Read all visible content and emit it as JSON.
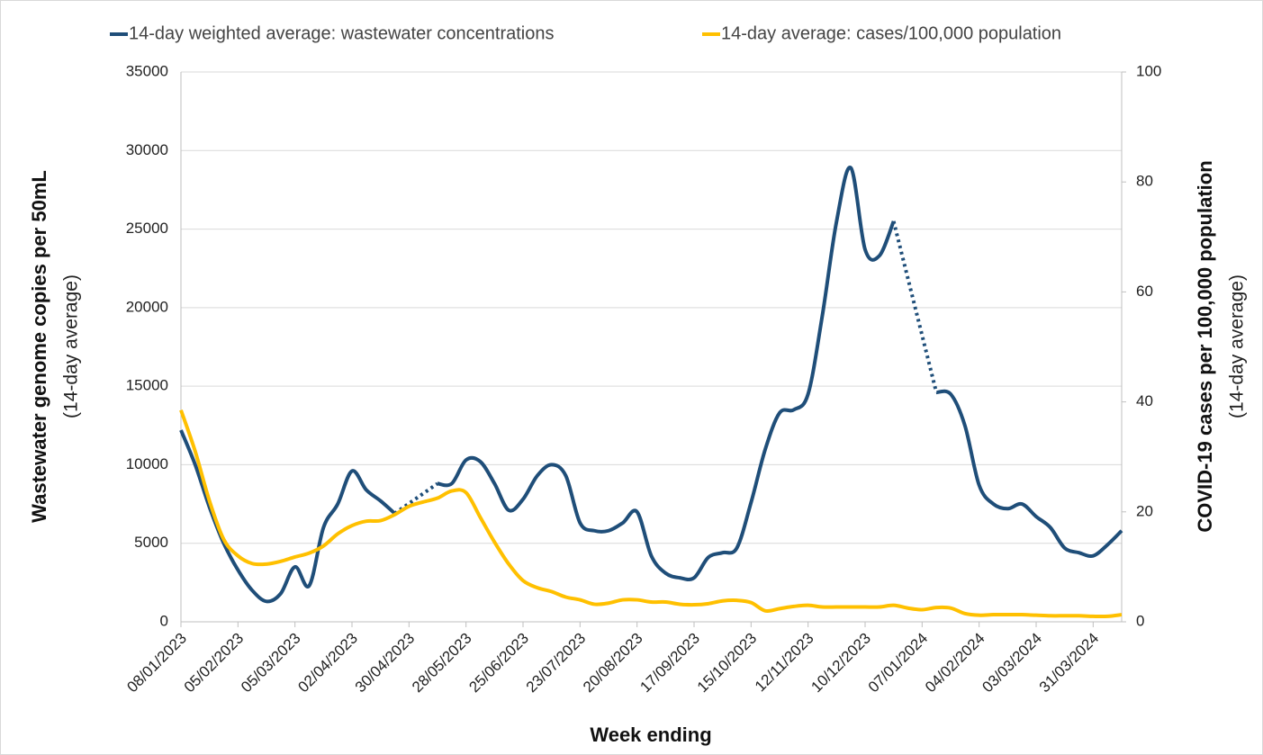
{
  "chart_data": {
    "type": "line",
    "x_label": "Week ending",
    "y_label": "Wastewater genome copies per 50mL",
    "y_label_sub": "(14-day average)",
    "y2_label": "COVID-19 cases per 100,000 population",
    "y2_label_sub": "(14-day average)",
    "categories": [
      "08/01/2023",
      null,
      null,
      null,
      "05/02/2023",
      null,
      null,
      null,
      "05/03/2023",
      null,
      null,
      null,
      "02/04/2023",
      null,
      null,
      null,
      "30/04/2023",
      null,
      null,
      null,
      "28/05/2023",
      null,
      null,
      null,
      "25/06/2023",
      null,
      null,
      null,
      "23/07/2023",
      null,
      null,
      null,
      "20/08/2023",
      null,
      null,
      null,
      "17/09/2023",
      null,
      null,
      null,
      "15/10/2023",
      null,
      null,
      null,
      "12/11/2023",
      null,
      null,
      null,
      "10/12/2023",
      null,
      null,
      null,
      "07/01/2024",
      null,
      null,
      null,
      "04/02/2024",
      null,
      null,
      null,
      "03/03/2024",
      null,
      null,
      null,
      "31/03/2024",
      null,
      null
    ],
    "series": [
      {
        "name": "14-day weighted average: wastewater concentrations",
        "color": "#1f4e79",
        "axis": "y",
        "values": [
          12200,
          10000,
          7300,
          5000,
          3300,
          2000,
          1300,
          1800,
          3500,
          2300,
          6000,
          7500,
          9600,
          8400,
          7700,
          6900,
          null,
          null,
          8800,
          8800,
          10300,
          10200,
          8800,
          7100,
          7800,
          9300,
          10000,
          9300,
          6300,
          5800,
          5800,
          6300,
          7000,
          4200,
          3100,
          2800,
          2800,
          4100,
          4400,
          4700,
          7600,
          11000,
          13300,
          13500,
          14500,
          19500,
          25500,
          28900,
          23700,
          23300,
          25500,
          null,
          null,
          14600,
          14500,
          12500,
          8700,
          7500,
          7200,
          7500,
          6700,
          6000,
          4700,
          4400,
          4200,
          4900,
          5800
        ]
      },
      {
        "name": "14-day average: cases/100,000 population",
        "color": "#ffc000",
        "axis": "y2",
        "values": [
          38.5,
          31,
          22,
          15,
          12,
          10.6,
          10.5,
          11,
          11.8,
          12.5,
          13.8,
          16,
          17.5,
          18.3,
          18.4,
          19.5,
          21,
          21.8,
          22.5,
          23.8,
          23.5,
          19,
          14.5,
          10.5,
          7.5,
          6.2,
          5.5,
          4.5,
          4,
          3.2,
          3.4,
          4,
          4,
          3.6,
          3.6,
          3.2,
          3.1,
          3.3,
          3.8,
          3.9,
          3.5,
          2,
          2.4,
          2.8,
          3,
          2.7,
          2.7,
          2.7,
          2.7,
          2.7,
          3,
          2.5,
          2.2,
          2.6,
          2.5,
          1.5,
          1.2,
          1.3,
          1.3,
          1.3,
          1.2,
          1.1,
          1.1,
          1.1,
          1,
          1,
          1.3
        ]
      }
    ],
    "ylim": [
      0,
      35000
    ],
    "yticks": [
      0,
      5000,
      10000,
      15000,
      20000,
      25000,
      30000,
      35000
    ],
    "y2lim": [
      0,
      100
    ],
    "y2ticks": [
      0,
      20,
      40,
      60,
      80,
      100
    ],
    "grid": true,
    "legend": "top"
  }
}
